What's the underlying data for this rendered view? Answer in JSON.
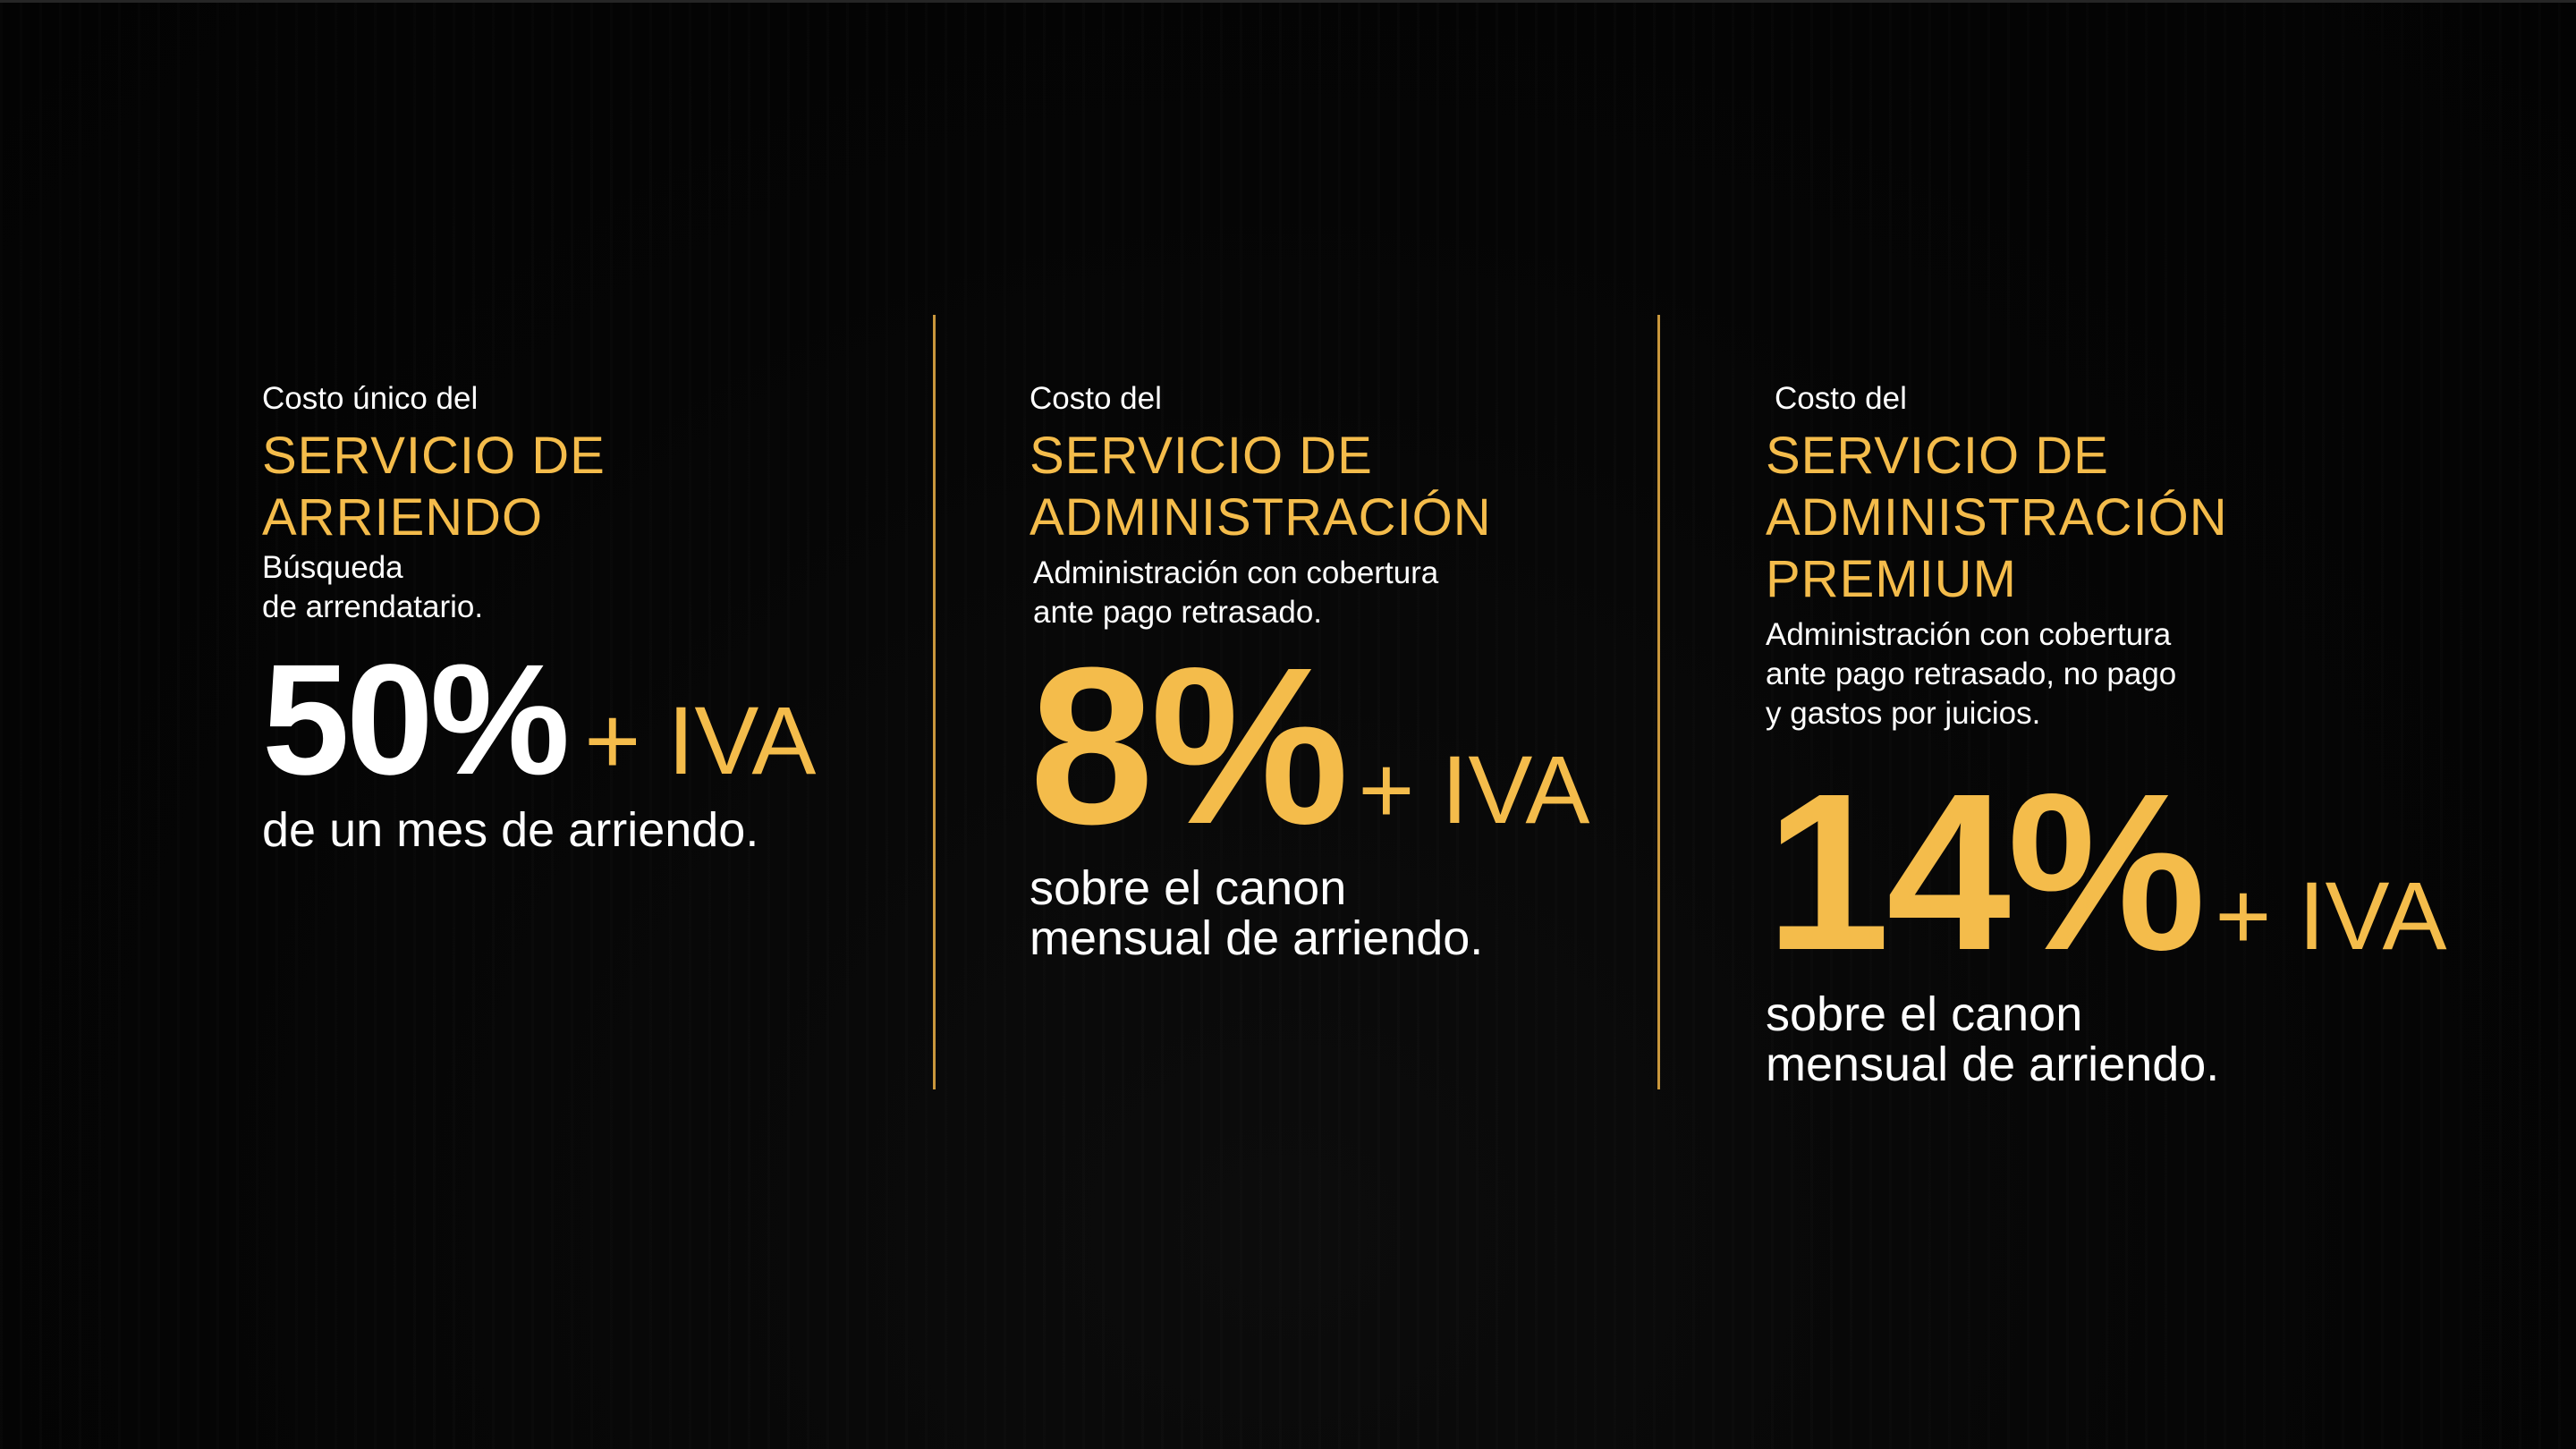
{
  "plans": [
    {
      "intro": "Costo único del",
      "title_lines": [
        "SERVICIO DE",
        "ARRIENDO"
      ],
      "desc_lines": [
        "Búsqueda",
        "de arrendatario."
      ],
      "price": "50%",
      "price_suffix": "+ IVA",
      "note_lines": [
        "de un mes de arriendo."
      ]
    },
    {
      "intro": "Costo del",
      "title_lines": [
        "SERVICIO DE",
        "ADMINISTRACIÓN"
      ],
      "desc_lines": [
        "Administración con cobertura",
        "ante pago retrasado."
      ],
      "price": "8%",
      "price_suffix": "+ IVA",
      "note_lines": [
        "sobre el canon",
        "mensual de arriendo."
      ]
    },
    {
      "intro": "Costo del",
      "title_lines": [
        "SERVICIO DE",
        "ADMINISTRACIÓN",
        "PREMIUM"
      ],
      "desc_lines": [
        "Administración con cobertura",
        "ante pago retrasado, no pago",
        "y gastos por juicios."
      ],
      "price": "14%",
      "price_suffix": "+ IVA",
      "note_lines": [
        "sobre el canon",
        "mensual de arriendo."
      ]
    }
  ],
  "colors": {
    "background": "#050505",
    "accent": "#f4bc4b",
    "divider": "#c9973c",
    "text": "#ffffff"
  }
}
